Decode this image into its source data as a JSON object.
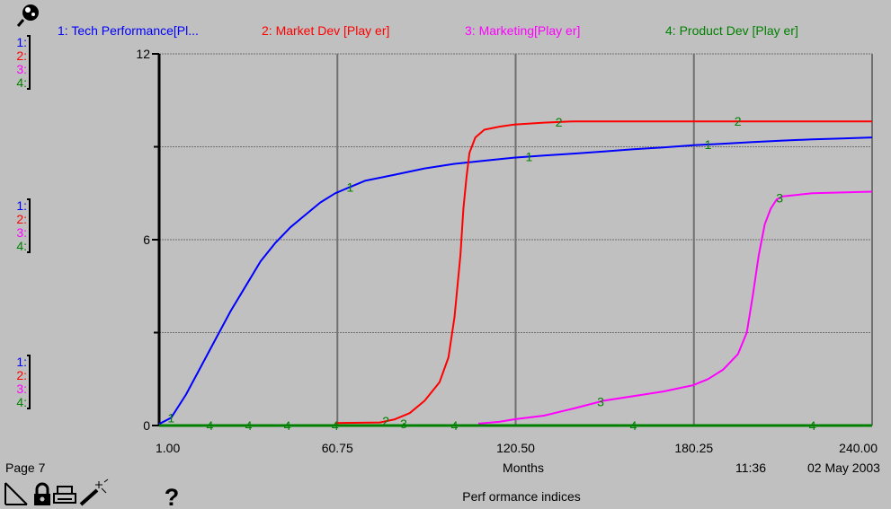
{
  "header": {
    "legend": [
      {
        "label": "1: Tech Performance[Pl...",
        "color": "#0000ff"
      },
      {
        "label": "2: Market Dev [Play er]",
        "color": "#ff0000"
      },
      {
        "label": "3: Marketing[Play er]",
        "color": "#ff00ff"
      },
      {
        "label": "4: Product Dev [Play er]",
        "color": "#008000"
      }
    ]
  },
  "axis_groups": [
    {
      "level": "top",
      "labels": [
        "1:",
        "2:",
        "3:",
        "4:"
      ]
    },
    {
      "level": "mid",
      "labels": [
        "1:",
        "2:",
        "3:",
        "4:"
      ]
    },
    {
      "level": "bottom",
      "labels": [
        "1:",
        "2:",
        "3:",
        "4:"
      ]
    }
  ],
  "footer": {
    "page": "Page 7",
    "xlabel": "Months",
    "time": "11:36",
    "date": "02 May 2003",
    "caption": "Perf ormance indices"
  },
  "toolbar_icons": [
    "pencil-icon",
    "lock-icon",
    "printer-icon",
    "magic-wand-icon",
    "help-icon"
  ],
  "chart_data": {
    "type": "line",
    "xlabel": "Months",
    "xlim": [
      1,
      240
    ],
    "ylim": [
      0,
      12
    ],
    "x_ticks": [
      "1.00",
      "60.75",
      "120.50",
      "180.25",
      "240.00"
    ],
    "y_ticks": [
      "0",
      "6",
      "12"
    ],
    "grid": true,
    "legend_position": "top",
    "series": [
      {
        "name": "1: Tech Performance[Pl...",
        "color": "#0000ff",
        "points": [
          [
            1,
            0.05
          ],
          [
            5,
            0.25
          ],
          [
            10,
            1.0
          ],
          [
            15,
            1.9
          ],
          [
            20,
            2.8
          ],
          [
            25,
            3.7
          ],
          [
            30,
            4.5
          ],
          [
            35,
            5.3
          ],
          [
            40,
            5.9
          ],
          [
            45,
            6.4
          ],
          [
            50,
            6.8
          ],
          [
            55,
            7.2
          ],
          [
            60,
            7.5
          ],
          [
            65,
            7.7
          ],
          [
            70,
            7.9
          ],
          [
            80,
            8.1
          ],
          [
            90,
            8.3
          ],
          [
            100,
            8.45
          ],
          [
            110,
            8.55
          ],
          [
            120,
            8.65
          ],
          [
            130,
            8.72
          ],
          [
            140,
            8.78
          ],
          [
            150,
            8.85
          ],
          [
            160,
            8.92
          ],
          [
            170,
            8.98
          ],
          [
            180,
            9.05
          ],
          [
            190,
            9.1
          ],
          [
            200,
            9.15
          ],
          [
            210,
            9.2
          ],
          [
            220,
            9.24
          ],
          [
            230,
            9.27
          ],
          [
            240,
            9.3
          ]
        ]
      },
      {
        "name": "2: Market Dev [Play er]",
        "color": "#ff0000",
        "points": [
          [
            60,
            0.08
          ],
          [
            75,
            0.1
          ],
          [
            80,
            0.2
          ],
          [
            85,
            0.4
          ],
          [
            90,
            0.8
          ],
          [
            95,
            1.4
          ],
          [
            98,
            2.2
          ],
          [
            100,
            3.5
          ],
          [
            102,
            5.5
          ],
          [
            103,
            7.0
          ],
          [
            104,
            8.0
          ],
          [
            105,
            8.8
          ],
          [
            107,
            9.3
          ],
          [
            110,
            9.55
          ],
          [
            115,
            9.65
          ],
          [
            120,
            9.72
          ],
          [
            130,
            9.78
          ],
          [
            140,
            9.82
          ],
          [
            150,
            9.82
          ],
          [
            180,
            9.82
          ],
          [
            210,
            9.82
          ],
          [
            240,
            9.82
          ]
        ]
      },
      {
        "name": "3: Marketing[Play er]",
        "color": "#ff00ff",
        "points": [
          [
            108,
            0.06
          ],
          [
            115,
            0.12
          ],
          [
            120,
            0.2
          ],
          [
            130,
            0.32
          ],
          [
            140,
            0.55
          ],
          [
            150,
            0.8
          ],
          [
            160,
            0.95
          ],
          [
            170,
            1.1
          ],
          [
            180,
            1.3
          ],
          [
            185,
            1.5
          ],
          [
            190,
            1.8
          ],
          [
            195,
            2.3
          ],
          [
            198,
            3.0
          ],
          [
            200,
            4.2
          ],
          [
            202,
            5.5
          ],
          [
            204,
            6.5
          ],
          [
            206,
            7.0
          ],
          [
            208,
            7.3
          ],
          [
            210,
            7.4
          ],
          [
            220,
            7.5
          ],
          [
            240,
            7.55
          ]
        ]
      },
      {
        "name": "4: Product Dev [Play er]",
        "color": "#008000",
        "points": [
          [
            1,
            0
          ],
          [
            240,
            0
          ]
        ]
      }
    ],
    "markers": [
      {
        "series": 0,
        "label": "1",
        "x": [
          5,
          65,
          125,
          185
        ]
      },
      {
        "series": 1,
        "label": "2",
        "x": [
          77,
          135,
          195
        ]
      },
      {
        "series": 2,
        "label": "3",
        "x": [
          83,
          149,
          209
        ]
      },
      {
        "series": 3,
        "label": "4",
        "x": [
          18,
          31,
          44,
          60,
          100,
          160,
          220
        ]
      }
    ]
  }
}
